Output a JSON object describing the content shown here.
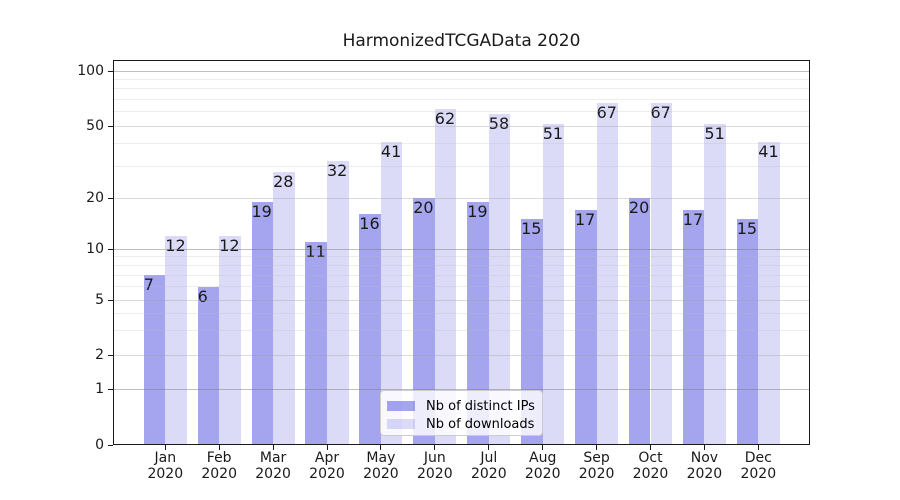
{
  "title": "HarmonizedTCGAData 2020",
  "chart_data": {
    "type": "bar",
    "title": "HarmonizedTCGAData 2020",
    "categories": [
      "Jan",
      "Feb",
      "Mar",
      "Apr",
      "May",
      "Jun",
      "Jul",
      "Aug",
      "Sep",
      "Oct",
      "Nov",
      "Dec"
    ],
    "category_year": "2020",
    "series": [
      {
        "name": "Nb of distinct IPs",
        "color": "rgba(90,90,225,0.55)",
        "values": [
          7,
          6,
          19,
          11,
          16,
          20,
          19,
          15,
          17,
          20,
          17,
          15
        ]
      },
      {
        "name": "Nb of downloads",
        "color": "rgba(90,90,225,0.22)",
        "values": [
          12,
          12,
          28,
          32,
          41,
          62,
          58,
          51,
          67,
          67,
          51,
          41
        ]
      }
    ],
    "xlabel": "",
    "ylabel": "",
    "yscale": "pseudo-log (asinh-like) with 0 baseline",
    "ylim": [
      0,
      115
    ],
    "y_ticks": [
      0,
      1,
      2,
      5,
      10,
      20,
      50,
      100
    ],
    "y_major_grid": [
      1,
      10,
      100
    ],
    "y_mid_grid": [
      2,
      5,
      20,
      50
    ],
    "y_minor_grid": [
      3,
      4,
      6,
      7,
      8,
      9,
      30,
      40,
      60,
      70,
      80,
      90
    ],
    "grid": true,
    "legend_position": "lower center, inside plot"
  }
}
